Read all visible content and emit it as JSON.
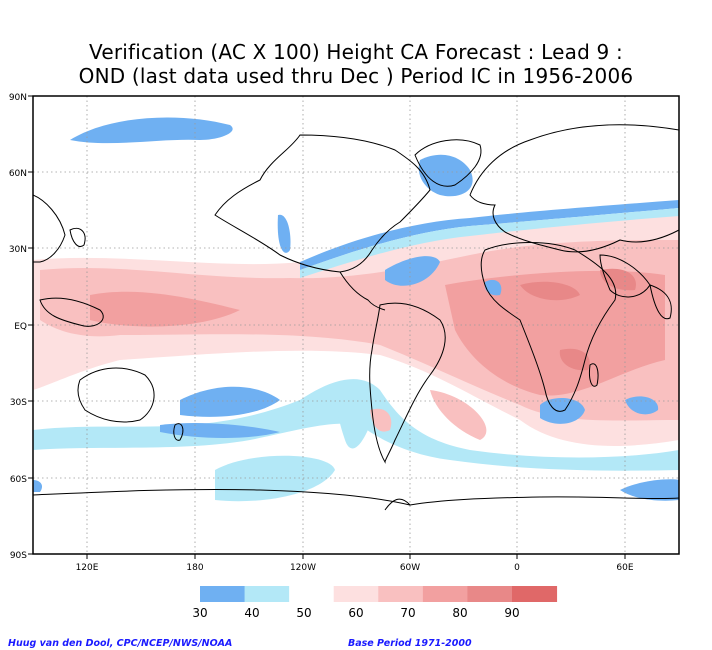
{
  "title": {
    "line1": "Verification (AC X 100) Height CA Forecast : Lead 9 :",
    "line2": "OND (last data used thru Dec ) Period IC in 1956-2006"
  },
  "axes": {
    "lat_ticks": [
      "90N",
      "60N",
      "30N",
      "EQ",
      "30S",
      "60S",
      "90S"
    ],
    "lon_ticks": [
      "120E",
      "180",
      "120W",
      "60W",
      "0",
      "60E"
    ]
  },
  "colorbar": {
    "labels": [
      "30",
      "40",
      "50",
      "60",
      "70",
      "80",
      "90"
    ],
    "colors": [
      "#6fb0f2",
      "#b3e8f7",
      "#ffffff",
      "#fde0e0",
      "#f9c0c0",
      "#f2a0a0",
      "#e88888",
      "#e06868"
    ]
  },
  "footer": {
    "credit": "Huug van den Dool, CPC/NCEP/NWS/NOAA",
    "base_period": "Base Period 1971-2000"
  }
}
